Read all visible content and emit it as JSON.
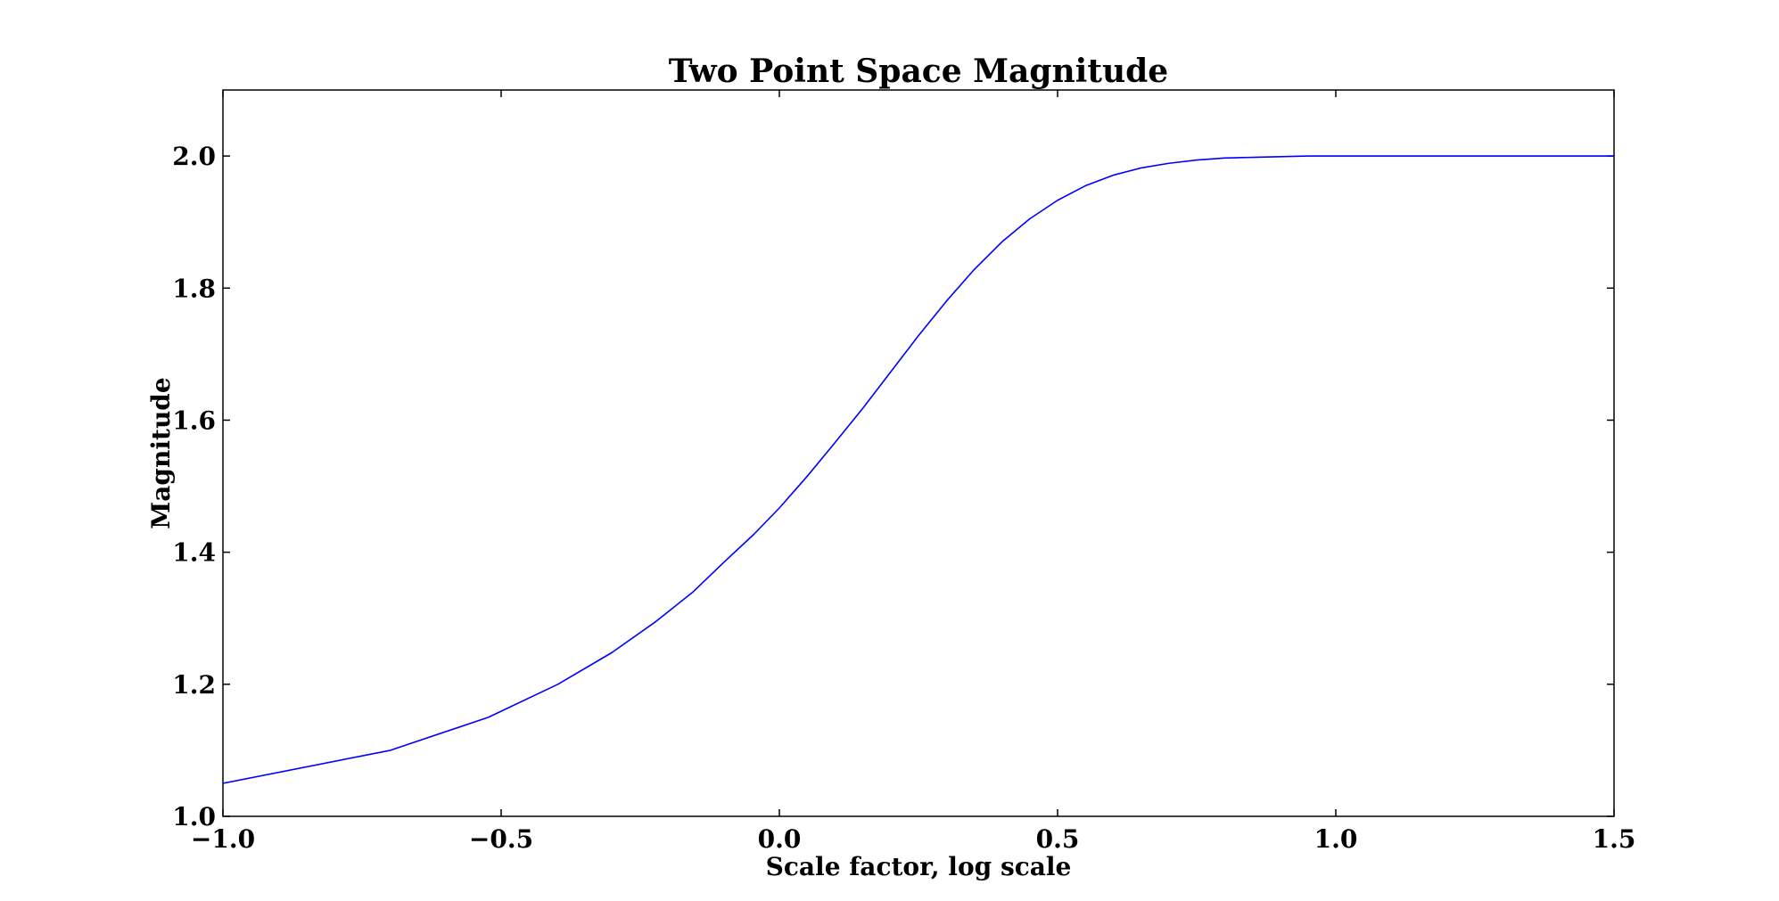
{
  "chart_data": {
    "type": "line",
    "title": "Two Point Space Magnitude",
    "xlabel": "Scale factor, log scale",
    "ylabel": "Magnitude",
    "xlim": [
      -1.0,
      1.5
    ],
    "ylim": [
      1.0,
      2.1
    ],
    "xticks": [
      {
        "value": -1.0,
        "label": "−1.0"
      },
      {
        "value": -0.5,
        "label": "−0.5"
      },
      {
        "value": 0.0,
        "label": "0.0"
      },
      {
        "value": 0.5,
        "label": "0.5"
      },
      {
        "value": 1.0,
        "label": "1.0"
      },
      {
        "value": 1.5,
        "label": "1.5"
      }
    ],
    "yticks": [
      {
        "value": 1.0,
        "label": "1.0"
      },
      {
        "value": 1.2,
        "label": "1.2"
      },
      {
        "value": 1.4,
        "label": "1.4"
      },
      {
        "value": 1.6,
        "label": "1.6"
      },
      {
        "value": 1.8,
        "label": "1.8"
      },
      {
        "value": 2.0,
        "label": "2.0"
      }
    ],
    "grid": false,
    "legend": "none",
    "series": [
      {
        "color": "#0000ff",
        "x": [
          -1.0,
          -0.699,
          -0.523,
          -0.398,
          -0.301,
          -0.222,
          -0.155,
          -0.097,
          -0.046,
          0.0,
          0.05,
          0.1,
          0.15,
          0.2,
          0.25,
          0.3,
          0.35,
          0.4,
          0.45,
          0.5,
          0.55,
          0.6,
          0.65,
          0.7,
          0.75,
          0.8,
          0.85,
          0.9,
          0.95,
          1.0,
          1.1,
          1.2,
          1.3,
          1.4,
          1.5
        ],
        "y": [
          1.05,
          1.1,
          1.15,
          1.2,
          1.248,
          1.295,
          1.34,
          1.387,
          1.427,
          1.467,
          1.515,
          1.566,
          1.618,
          1.673,
          1.728,
          1.78,
          1.828,
          1.87,
          1.905,
          1.933,
          1.955,
          1.971,
          1.982,
          1.989,
          1.994,
          1.997,
          1.998,
          1.999,
          2.0,
          2.0,
          2.0,
          2.0,
          2.0,
          2.0,
          2.0
        ]
      }
    ]
  }
}
